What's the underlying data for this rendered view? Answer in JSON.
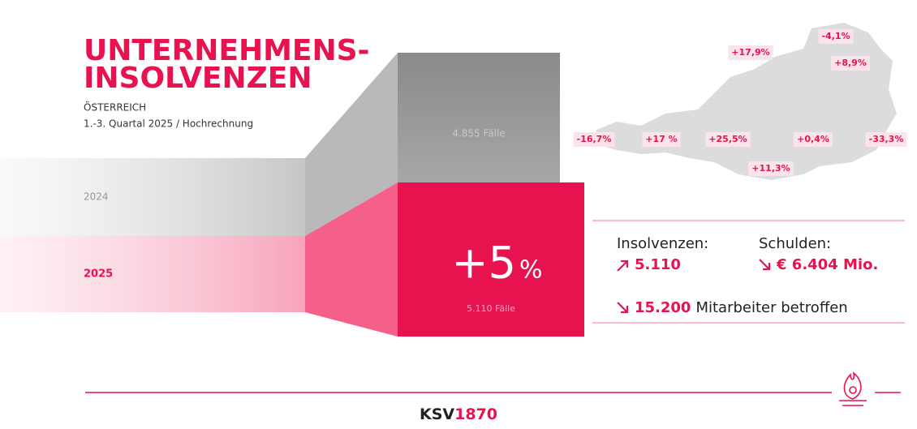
{
  "title": {
    "line1": "UNTERNEHMENS-",
    "line2": "INSOLVENZEN"
  },
  "subtitle": {
    "region": "ÖSTERREICH",
    "period": "1.-3. Quartal 2025 / Hochrechnung"
  },
  "year_prev": {
    "label": "2024",
    "cases": "4.855 Fälle"
  },
  "year_curr": {
    "label": "2025",
    "change": "+5",
    "change_unit": "%",
    "cases": "5.110 Fälle"
  },
  "stats": {
    "insolvencies_label": "Insolvenzen:",
    "insolvencies_value": "5.110",
    "debt_label": "Schulden:",
    "debt_value": "€ 6.404 Mio.",
    "employees_value": "15.200",
    "employees_text": "Mitarbeiter betroffen"
  },
  "map_labels": [
    "-4,1%",
    "+17,9%",
    "+8,9%",
    "-16,7%",
    "+17 %",
    "+25,5%",
    "+0,4%",
    "-33,3%",
    "+11,3%"
  ],
  "footer": {
    "brand": "KSV",
    "brand_number": "1870"
  }
}
